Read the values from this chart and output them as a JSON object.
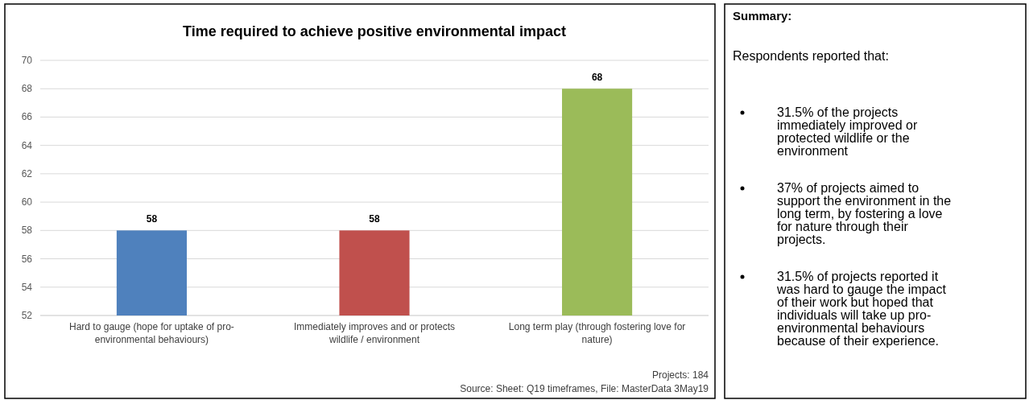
{
  "chart_data": [
    {
      "type": "bar",
      "title": "Time required to achieve positive environmental impact",
      "categories": [
        "Hard to gauge (hope for uptake of pro-environmental behaviours)",
        "Immediately improves and or protects wildlife / environment",
        "Long term play (through fostering love for nature)"
      ],
      "values": [
        58,
        58,
        68
      ],
      "colors": [
        "#4f81bd",
        "#c0504d",
        "#9bbb59"
      ],
      "ylim": [
        52,
        70
      ],
      "yticks": [
        52,
        54,
        56,
        58,
        60,
        62,
        64,
        66,
        68,
        70
      ],
      "grid": "y",
      "data_labels": true,
      "annotations": [
        "Projects:  184",
        "Source:  Sheet: Q19 timeframes, File: MasterData 3May19"
      ]
    },
    {
      "type": "other",
      "title": "Summary:",
      "subtitle": "Respondents reported that:",
      "annotations": [
        "31.5% of the projects immediately improved or protected wildlife or the environment",
        "37% of projects aimed to support the environment in the long term, by fostering a love for nature through their projects.",
        "31.5% of projects reported it was hard to gauge the impact of their work but hoped that individuals will take up pro-environmental behaviours because of their experience."
      ]
    }
  ]
}
